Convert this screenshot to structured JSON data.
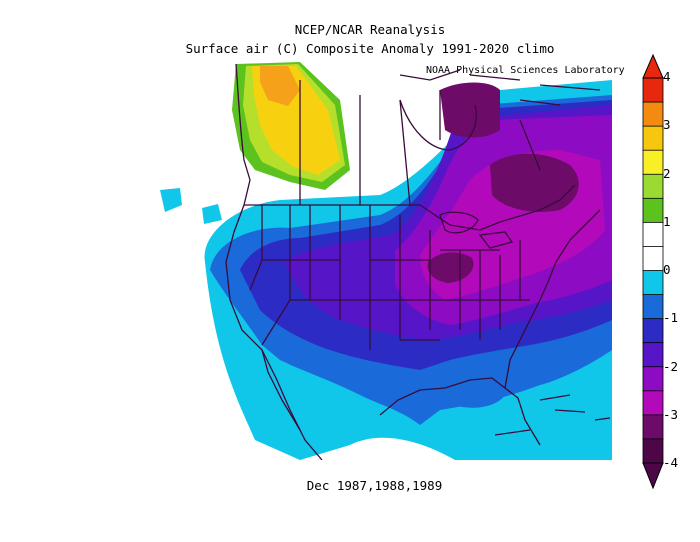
{
  "title_line1": "NCEP/NCAR Reanalysis",
  "title_line2": "Surface air (C) Composite Anomaly 1991-2020 climo",
  "credit": "NOAA Physical Sciences Laboratory",
  "caption": "Dec 1987,1988,1989",
  "colorbar": {
    "ticks": [
      "4",
      "3",
      "2",
      "1",
      "0",
      "-1",
      "-2",
      "-3",
      "-4"
    ],
    "colors": [
      "#e8270f",
      "#f58a10",
      "#f7c70f",
      "#f8ef26",
      "#9bd933",
      "#5cc21d",
      "#ffffff",
      "#ffffff",
      "#10c7ea",
      "#1b6ad9",
      "#2c2cc4",
      "#5616c8",
      "#8d0cc3",
      "#b20aba",
      "#6c0b68",
      "#4d0747"
    ]
  },
  "colors": {
    "cyan": "#10c7ea",
    "blue": "#1b6ad9",
    "deepblue": "#2c2cc4",
    "indigo": "#5616c8",
    "purple": "#8d0cc3",
    "magenta": "#b20aba",
    "darkpurple": "#6c0b68",
    "yellow": "#f7d10f",
    "lightgreen": "#b6df2c",
    "green": "#5cc21d",
    "orange": "#f5a21a"
  }
}
